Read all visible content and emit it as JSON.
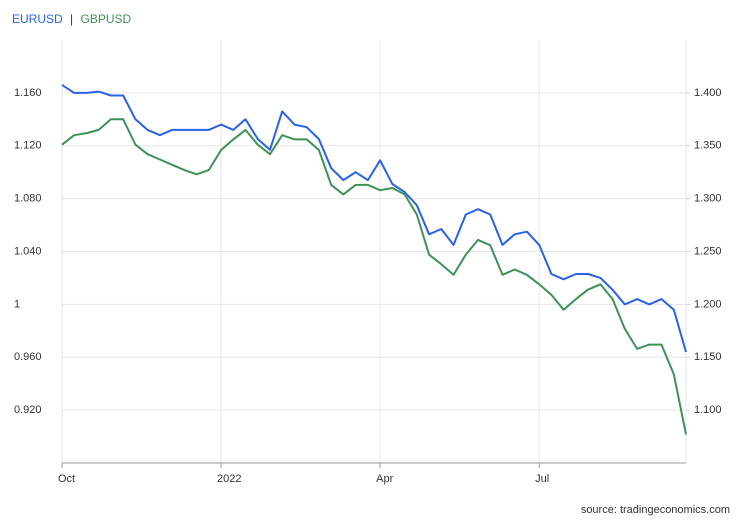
{
  "chart_data": {
    "type": "line",
    "legend_separator": "|",
    "source": "source: tradingeconomics.com",
    "categories": [
      "Oct",
      null,
      null,
      null,
      null,
      null,
      null,
      null,
      null,
      null,
      null,
      null,
      null,
      "2022",
      null,
      null,
      null,
      null,
      null,
      null,
      null,
      null,
      null,
      null,
      null,
      null,
      "Apr",
      null,
      null,
      null,
      null,
      null,
      null,
      null,
      null,
      null,
      null,
      null,
      null,
      "Jul",
      null,
      null,
      null,
      null,
      null,
      null,
      null,
      null,
      null,
      null,
      null,
      null
    ],
    "series": [
      {
        "name": "EURUSD",
        "color": "#2962e6",
        "values": [
          1.166,
          1.16,
          1.16,
          1.161,
          1.158,
          1.158,
          1.14,
          1.132,
          1.128,
          1.132,
          1.132,
          1.132,
          1.132,
          1.136,
          1.132,
          1.14,
          1.125,
          1.117,
          1.146,
          1.136,
          1.134,
          1.125,
          1.103,
          1.094,
          1.1,
          1.094,
          1.109,
          1.091,
          1.085,
          1.075,
          1.053,
          1.057,
          1.045,
          1.068,
          1.072,
          1.068,
          1.045,
          1.053,
          1.055,
          1.045,
          1.023,
          1.019,
          1.023,
          1.023,
          1.02,
          1.011,
          1.0,
          1.004,
          1.0,
          1.004,
          0.996,
          0.964
        ]
      },
      {
        "name": "GBPUSD",
        "color": "#3e9257",
        "axis": "y2",
        "values": [
          1.351,
          1.36,
          1.362,
          1.365,
          1.375,
          1.375,
          1.351,
          1.342,
          1.337,
          1.332,
          1.327,
          1.323,
          1.327,
          1.346,
          1.356,
          1.365,
          1.351,
          1.342,
          1.36,
          1.356,
          1.356,
          1.346,
          1.313,
          1.304,
          1.313,
          1.313,
          1.308,
          1.31,
          1.304,
          1.285,
          1.247,
          1.238,
          1.228,
          1.247,
          1.261,
          1.256,
          1.228,
          1.233,
          1.228,
          1.219,
          1.209,
          1.195,
          1.205,
          1.214,
          1.219,
          1.205,
          1.177,
          1.158,
          1.162,
          1.162,
          1.134,
          1.077
        ]
      }
    ],
    "ylim": [
      0.88,
      1.2
    ],
    "yticks": [
      {
        "value": 0.92,
        "label": "0.920"
      },
      {
        "value": 0.96,
        "label": "0.960"
      },
      1,
      {
        "value": 1.04,
        "label": "1.040"
      },
      {
        "value": 1.08,
        "label": "1.080"
      },
      {
        "value": 1.12,
        "label": "1.120"
      },
      {
        "value": 1.16,
        "label": "1.160"
      }
    ],
    "y2lim": [
      1.05,
      1.45
    ],
    "y2ticks": [
      {
        "value": 1.1,
        "label": "1.100"
      },
      {
        "value": 1.15,
        "label": "1.150"
      },
      {
        "value": 1.2,
        "label": "1.200"
      },
      {
        "value": 1.25,
        "label": "1.250"
      },
      {
        "value": 1.3,
        "label": "1.300"
      },
      {
        "value": 1.35,
        "label": "1.350"
      },
      {
        "value": 1.4,
        "label": "1.400"
      }
    ],
    "grid": true
  }
}
